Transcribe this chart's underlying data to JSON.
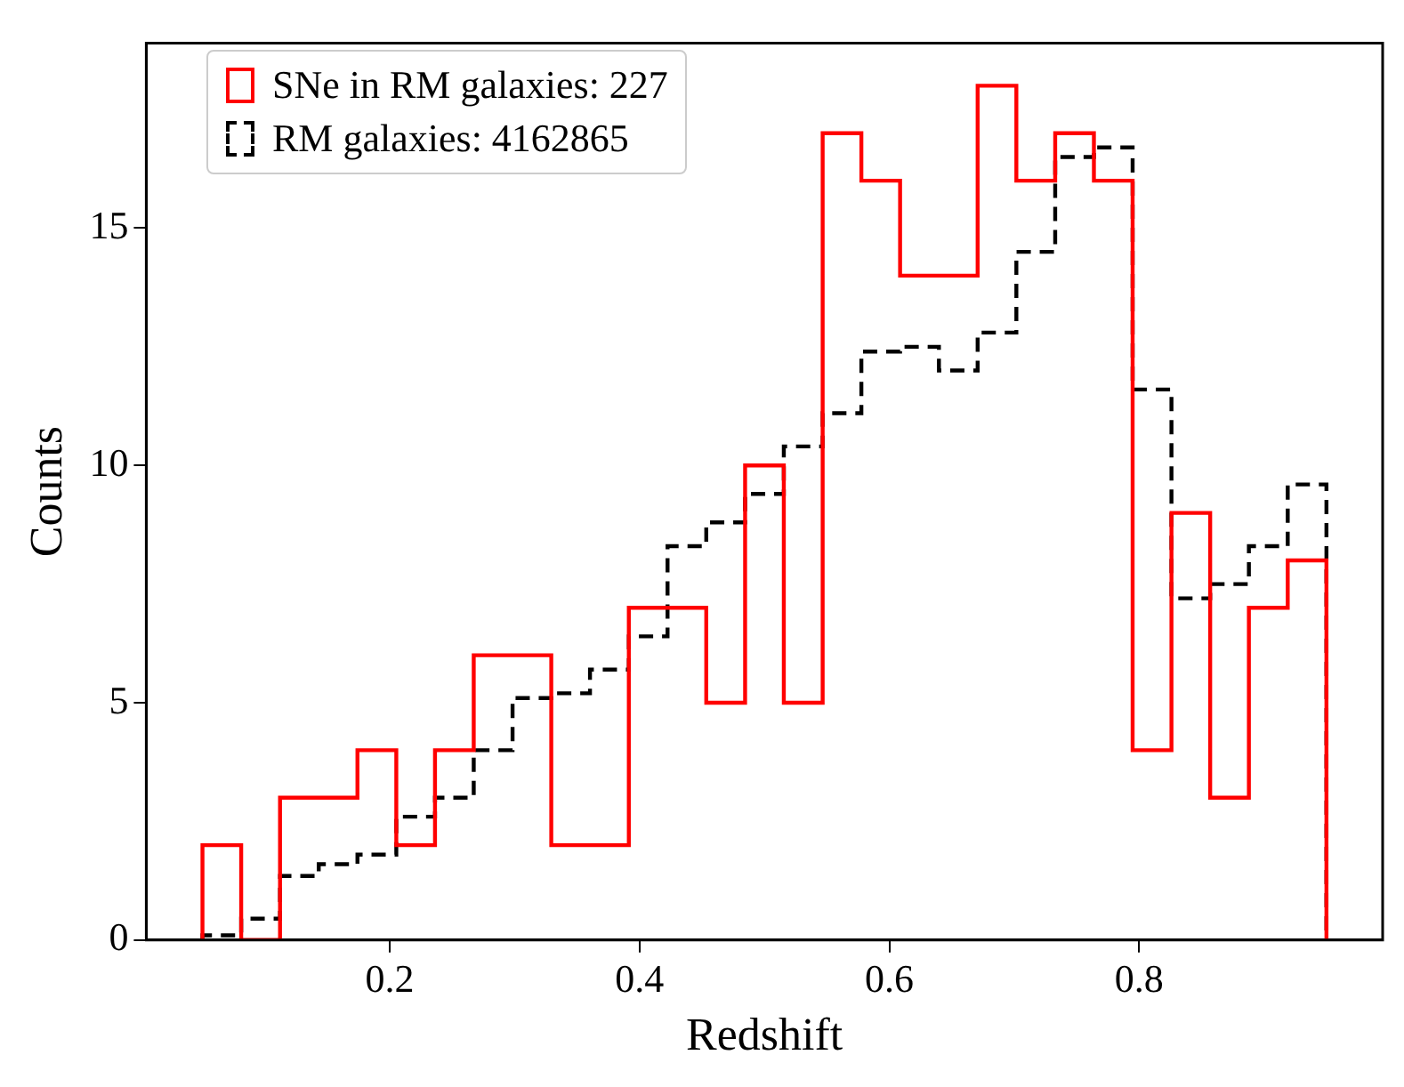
{
  "chart_data": {
    "type": "histogram",
    "xlabel": "Redshift",
    "ylabel": "Counts",
    "bins": [
      0.05,
      0.081,
      0.1121,
      0.1431,
      0.1741,
      0.2052,
      0.2362,
      0.2672,
      0.2983,
      0.3293,
      0.3603,
      0.3914,
      0.4224,
      0.4534,
      0.4845,
      0.5155,
      0.5466,
      0.5776,
      0.6086,
      0.6397,
      0.6707,
      0.7017,
      0.7328,
      0.7638,
      0.7948,
      0.8259,
      0.8569,
      0.8879,
      0.919,
      0.95
    ],
    "series": [
      {
        "name": "SNe in RM galaxies: 227",
        "color": "#ff0000",
        "line_style": "solid",
        "values": [
          2,
          0,
          3,
          3,
          4,
          2,
          4,
          6,
          6,
          2,
          2,
          7,
          7,
          5,
          10,
          5,
          17,
          16,
          14,
          14,
          18,
          16,
          17,
          16,
          4,
          9,
          3,
          7,
          8
        ]
      },
      {
        "name": "RM galaxies: 4162865",
        "color": "#000000",
        "line_style": "dashed",
        "values": [
          0.1,
          0.45,
          1.35,
          1.6,
          1.8,
          2.6,
          3.0,
          4.0,
          5.1,
          5.2,
          5.7,
          6.4,
          8.3,
          8.8,
          9.4,
          10.4,
          11.1,
          12.4,
          12.5,
          12.0,
          12.8,
          14.5,
          16.5,
          16.7,
          11.6,
          7.2,
          7.5,
          8.3,
          9.6
        ]
      }
    ],
    "xlim": [
      0.005,
      0.995
    ],
    "ylim": [
      0,
      18.9
    ],
    "xticks": [
      0.2,
      0.4,
      0.6,
      0.8
    ],
    "yticks": [
      0,
      5,
      10,
      15
    ],
    "grid": false,
    "legend": "top left"
  }
}
